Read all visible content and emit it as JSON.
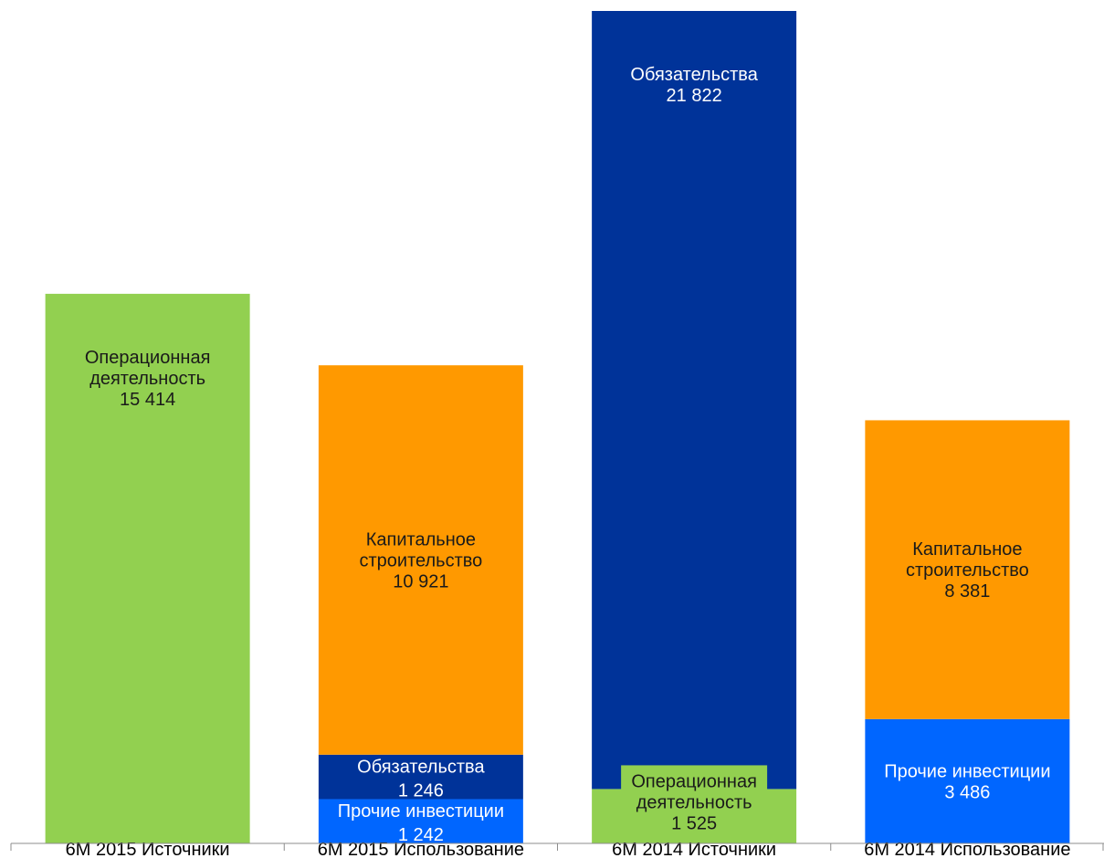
{
  "chart_data": {
    "type": "bar",
    "stacked": true,
    "grid": false,
    "legend": "none",
    "ylim": [
      0,
      23347
    ],
    "categories": [
      "6M 2015 Источники",
      "6M 2015 Использование",
      "6M 2014 Источники",
      "6M 2014 Использование"
    ],
    "bars": [
      {
        "category": "6M 2015 Источники",
        "segments": [
          {
            "label": "Операционная\nдеятельность",
            "value": 15414,
            "value_text": "15 414",
            "color": "#92D050",
            "text_color": "#1a1a1a"
          }
        ]
      },
      {
        "category": "6M 2015 Использование",
        "segments": [
          {
            "label": "Прочие инвестиции",
            "value": 1242,
            "value_text": "1 242",
            "color": "#0066FF",
            "text_color": "#ffffff"
          },
          {
            "label": "Обязательства",
            "value": 1246,
            "value_text": "1 246",
            "color": "#003399",
            "text_color": "#ffffff"
          },
          {
            "label": "Капитальное\nстроительство",
            "value": 10921,
            "value_text": "10 921",
            "color": "#FF9900",
            "text_color": "#1a1a1a"
          }
        ]
      },
      {
        "category": "6M 2014 Источники",
        "segments": [
          {
            "label": "Операционная\nдеятельность",
            "value": 1525,
            "value_text": "1 525",
            "color": "#92D050",
            "text_color": "#1a1a1a"
          },
          {
            "label": "Обязательства",
            "value": 21822,
            "value_text": "21 822",
            "color": "#003399",
            "text_color": "#ffffff"
          }
        ]
      },
      {
        "category": "6M 2014 Использование",
        "segments": [
          {
            "label": "Прочие инвестиции",
            "value": 3486,
            "value_text": "3 486",
            "color": "#0066FF",
            "text_color": "#ffffff"
          },
          {
            "label": "Капитальное\nстроительство",
            "value": 8381,
            "value_text": "8 381",
            "color": "#FF9900",
            "text_color": "#1a1a1a"
          }
        ]
      }
    ]
  }
}
